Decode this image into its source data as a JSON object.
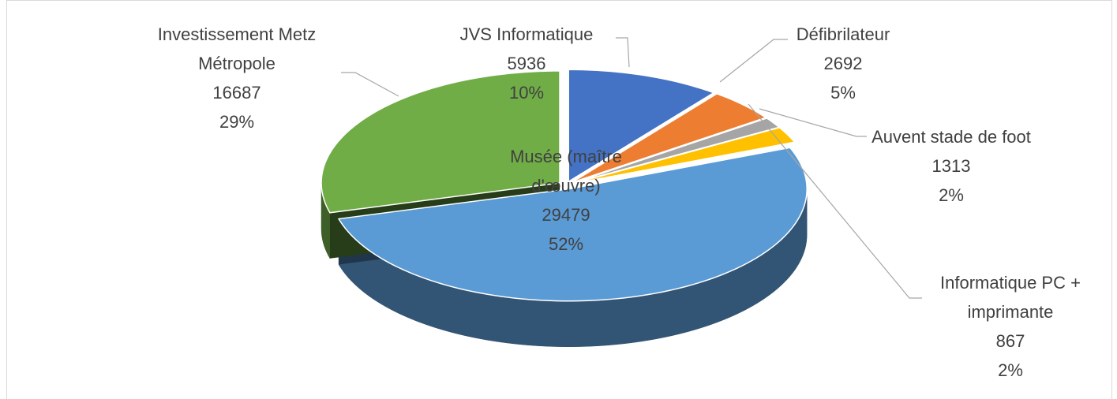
{
  "chart_data": {
    "type": "pie3d",
    "categories": [
      "JVS Informatique",
      "Défibrilateur",
      "Informatique PC + imprimante",
      "Auvent stade de foot",
      "Musée (maître d'œuvre)",
      "Investissement Metz Métropole"
    ],
    "values": [
      5936,
      2692,
      867,
      1313,
      29479,
      16687
    ],
    "percent_labels": [
      "10%",
      "5%",
      "2%",
      "2%",
      "52%",
      "29%"
    ],
    "colors": [
      "#4472c4",
      "#ed7d31",
      "#a5a5a5",
      "#ffc000",
      "#5b9bd5",
      "#70ad47"
    ]
  }
}
